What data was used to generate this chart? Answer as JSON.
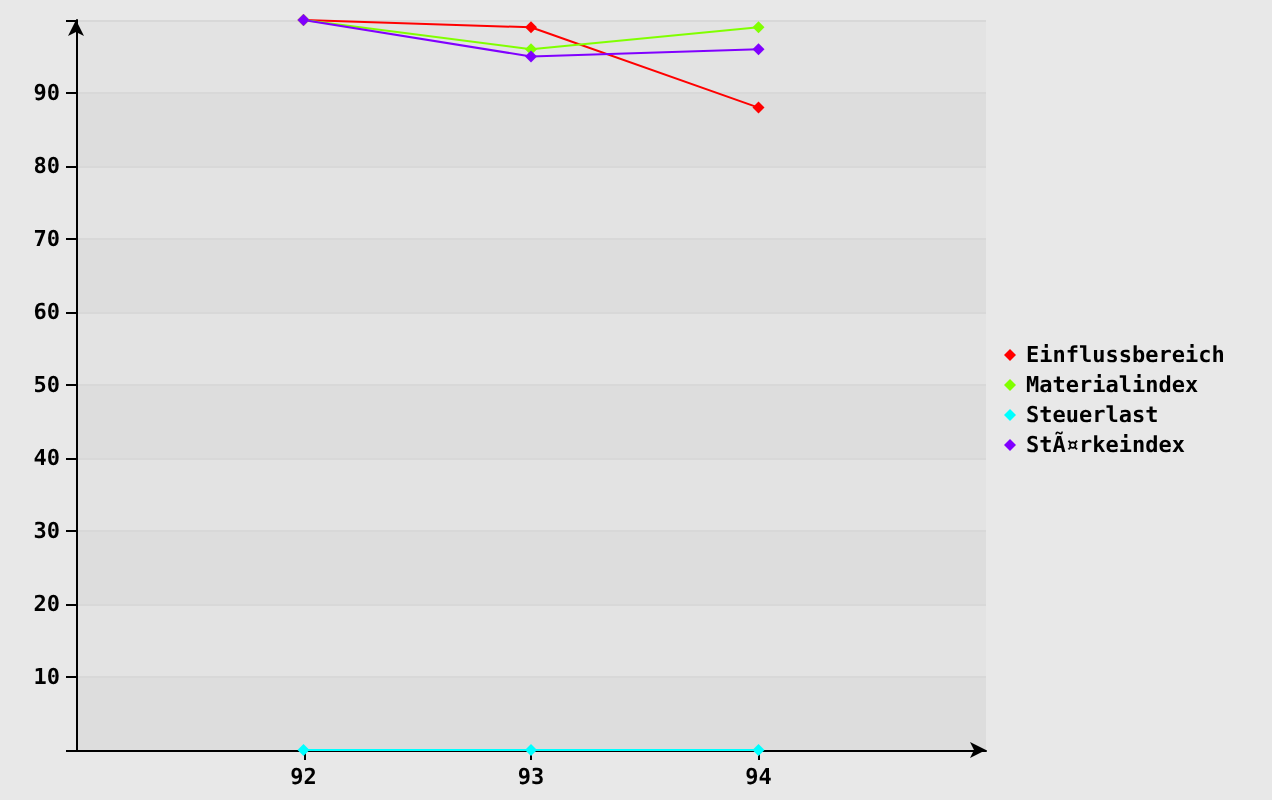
{
  "chart_data": {
    "type": "line",
    "x": [
      92,
      93,
      94
    ],
    "xlim": [
      91,
      95
    ],
    "xticks": [
      92,
      93,
      94
    ],
    "ylim": [
      0,
      100
    ],
    "yticks": [
      10,
      20,
      30,
      40,
      50,
      60,
      70,
      80,
      90
    ],
    "series": [
      {
        "name": "Einflussbereich",
        "color": "#ff0000",
        "values": [
          100,
          99,
          88
        ]
      },
      {
        "name": "Materialindex",
        "color": "#80ff00",
        "values": [
          100,
          96,
          99
        ]
      },
      {
        "name": "Steuerlast",
        "color": "#00ffff",
        "values": [
          0,
          0,
          0
        ]
      },
      {
        "name": "StÃ¤rkeindex",
        "color": "#8000ff",
        "values": [
          100,
          95,
          96
        ]
      }
    ],
    "grid": "y",
    "legend": "right",
    "marker": "diamond",
    "line_style": "solid"
  }
}
